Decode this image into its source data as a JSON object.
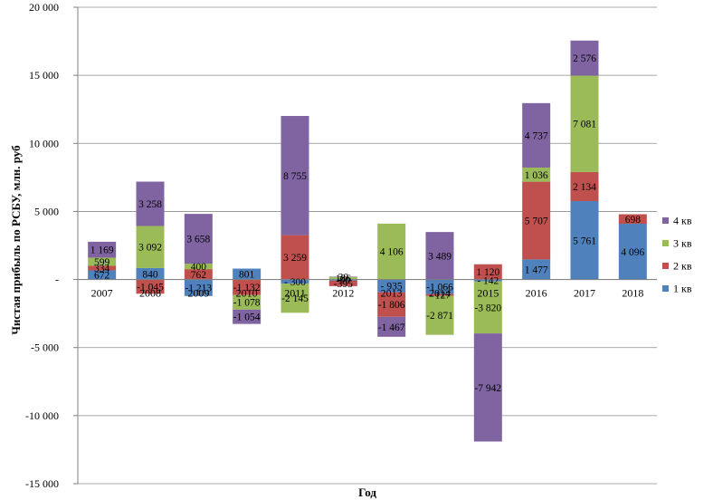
{
  "chart_data": {
    "type": "bar",
    "stacked": true,
    "categories": [
      "2007",
      "2008",
      "2009",
      "2010",
      "2011",
      "2012",
      "2013",
      "2014",
      "2015",
      "2016",
      "2017",
      "2018"
    ],
    "series": [
      {
        "name": "1 кв",
        "color": "#4f81bd",
        "values": [
          672,
          840,
          -1213,
          801,
          -300,
          -90,
          -935,
          -1066,
          -142,
          1477,
          5761,
          4096
        ]
      },
      {
        "name": "2 кв",
        "color": "#c0504d",
        "values": [
          334,
          -1045,
          762,
          -1132,
          3259,
          -395,
          -1806,
          -127,
          1120,
          5707,
          2134,
          698
        ]
      },
      {
        "name": "3 кв",
        "color": "#9bbb59",
        "values": [
          599,
          3092,
          400,
          -1078,
          -2145,
          186,
          4106,
          -2871,
          -3820,
          1036,
          7081,
          null
        ]
      },
      {
        "name": "4 кв",
        "color": "#8064a2",
        "values": [
          1169,
          3258,
          3658,
          -1054,
          8755,
          30,
          -1467,
          3489,
          -7942,
          4737,
          2576,
          null
        ]
      }
    ],
    "data_labels": [
      [
        "672",
        "334",
        "599",
        "1 169"
      ],
      [
        "840",
        "-1 045",
        "3 092",
        "3 258"
      ],
      [
        "-1 213",
        "762",
        "400",
        "3 658"
      ],
      [
        "801",
        "-1 132",
        "-1 078",
        "-1 054"
      ],
      [
        "- 300",
        "3 259",
        "-2 145",
        "8 755"
      ],
      [
        "-90",
        "-395",
        "186",
        "30"
      ],
      [
        "- 935",
        "-1 806",
        "4 106",
        "-1 467"
      ],
      [
        "-1 066",
        "- 127",
        "-2 871",
        "3 489"
      ],
      [
        "- 142",
        "1 120",
        "-3 820",
        "-7 942"
      ],
      [
        "1 477",
        "5 707",
        "1 036",
        "4 737"
      ],
      [
        "5 761",
        "2 134",
        "7 081",
        "2 576"
      ],
      [
        "4 096",
        "698",
        "",
        ""
      ]
    ],
    "ylim": [
      -15000,
      20000
    ],
    "yticks": [
      -15000,
      -10000,
      -5000,
      0,
      5000,
      10000,
      15000,
      20000
    ],
    "ytick_labels": [
      "-15 000",
      "-10 000",
      "-5 000",
      "-",
      "5 000",
      "10 000",
      "15 000",
      "20 000"
    ],
    "xlabel": "Год",
    "ylabel": "Чистая прибыль по РСБУ, млн. руб",
    "title": "",
    "grid": true,
    "legend": {
      "position": "right",
      "order": [
        "4 кв",
        "3 кв",
        "2 кв",
        "1 кв"
      ]
    }
  }
}
